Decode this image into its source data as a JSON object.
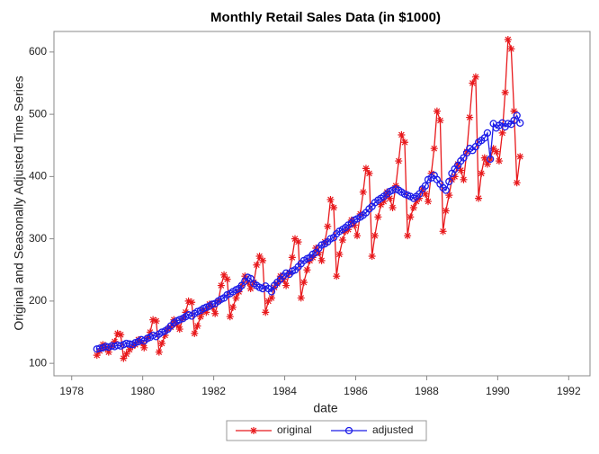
{
  "chart_data": {
    "type": "line",
    "title": "Monthly Retail Sales Data (in $1000)",
    "x_label": "date",
    "y_label": "Original and Seasonally Adjusted Time Series",
    "x": [
      1978.71,
      1978.79,
      1978.88,
      1978.96,
      1979.04,
      1979.13,
      1979.21,
      1979.29,
      1979.38,
      1979.46,
      1979.54,
      1979.63,
      1979.71,
      1979.79,
      1979.88,
      1979.96,
      1980.04,
      1980.13,
      1980.21,
      1980.29,
      1980.38,
      1980.46,
      1980.54,
      1980.63,
      1980.71,
      1980.79,
      1980.88,
      1980.96,
      1981.04,
      1981.13,
      1981.21,
      1981.29,
      1981.38,
      1981.46,
      1981.54,
      1981.63,
      1981.71,
      1981.79,
      1981.88,
      1981.96,
      1982.04,
      1982.13,
      1982.21,
      1982.29,
      1982.38,
      1982.46,
      1982.54,
      1982.63,
      1982.71,
      1982.79,
      1982.88,
      1982.96,
      1983.04,
      1983.13,
      1983.21,
      1983.29,
      1983.38,
      1983.46,
      1983.54,
      1983.63,
      1983.71,
      1983.79,
      1983.88,
      1983.96,
      1984.04,
      1984.13,
      1984.21,
      1984.29,
      1984.38,
      1984.46,
      1984.54,
      1984.63,
      1984.71,
      1984.79,
      1984.88,
      1984.96,
      1985.04,
      1985.13,
      1985.21,
      1985.29,
      1985.38,
      1985.46,
      1985.54,
      1985.63,
      1985.71,
      1985.79,
      1985.88,
      1985.96,
      1986.04,
      1986.13,
      1986.21,
      1986.29,
      1986.38,
      1986.46,
      1986.54,
      1986.63,
      1986.71,
      1986.79,
      1986.88,
      1986.96,
      1987.04,
      1987.13,
      1987.21,
      1987.29,
      1987.38,
      1987.46,
      1987.54,
      1987.63,
      1987.71,
      1987.79,
      1987.88,
      1987.96,
      1988.04,
      1988.13,
      1988.21,
      1988.29,
      1988.38,
      1988.46,
      1988.54,
      1988.63,
      1988.71,
      1988.79,
      1988.88,
      1988.96,
      1989.04,
      1989.13,
      1989.21,
      1989.29,
      1989.38,
      1989.46,
      1989.54,
      1989.63,
      1989.71,
      1989.79,
      1989.88,
      1989.96,
      1990.04,
      1990.13,
      1990.21,
      1990.29,
      1990.38,
      1990.46,
      1990.54,
      1990.63
    ],
    "series": [
      {
        "name": "original",
        "color": "#e8191c",
        "marker": "star",
        "values": [
          113,
          120,
          130,
          125,
          118,
          128,
          135,
          148,
          146,
          108,
          115,
          122,
          128,
          130,
          138,
          133,
          125,
          140,
          150,
          170,
          168,
          118,
          132,
          145,
          155,
          158,
          170,
          162,
          155,
          172,
          182,
          200,
          198,
          148,
          160,
          175,
          185,
          182,
          195,
          190,
          180,
          200,
          225,
          242,
          235,
          175,
          190,
          205,
          215,
          225,
          240,
          230,
          220,
          230,
          258,
          272,
          265,
          182,
          200,
          205,
          222,
          228,
          240,
          235,
          225,
          245,
          270,
          300,
          295,
          205,
          230,
          250,
          265,
          270,
          285,
          278,
          265,
          295,
          320,
          363,
          350,
          240,
          275,
          298,
          312,
          315,
          330,
          322,
          305,
          340,
          375,
          413,
          405,
          272,
          305,
          335,
          355,
          360,
          375,
          365,
          350,
          385,
          425,
          467,
          455,
          305,
          335,
          350,
          360,
          365,
          380,
          372,
          360,
          405,
          445,
          505,
          490,
          312,
          345,
          370,
          395,
          400,
          420,
          410,
          395,
          440,
          495,
          550,
          560,
          365,
          405,
          430,
          420,
          428,
          445,
          440,
          425,
          470,
          535,
          620,
          605,
          505,
          390,
          432
        ]
      },
      {
        "name": "adjusted",
        "color": "#1c1ce8",
        "marker": "circle",
        "values": [
          123,
          124,
          125,
          127,
          126,
          128,
          127,
          129,
          128,
          130,
          132,
          131,
          130,
          133,
          135,
          138,
          136,
          140,
          142,
          145,
          143,
          147,
          150,
          152,
          155,
          160,
          165,
          168,
          170,
          172,
          175,
          178,
          176,
          180,
          183,
          185,
          188,
          190,
          192,
          195,
          196,
          200,
          203,
          205,
          210,
          212,
          215,
          218,
          220,
          225,
          232,
          238,
          236,
          228,
          225,
          222,
          220,
          224,
          220,
          215,
          225,
          230,
          235,
          240,
          245,
          243,
          248,
          250,
          255,
          260,
          265,
          268,
          270,
          275,
          278,
          285,
          290,
          292,
          295,
          300,
          302,
          308,
          312,
          315,
          318,
          322,
          325,
          330,
          332,
          335,
          338,
          342,
          348,
          352,
          358,
          362,
          365,
          368,
          372,
          376,
          378,
          380,
          378,
          375,
          372,
          370,
          368,
          365,
          368,
          372,
          380,
          385,
          395,
          398,
          402,
          395,
          388,
          382,
          378,
          392,
          405,
          412,
          418,
          425,
          430,
          438,
          445,
          442,
          448,
          455,
          458,
          462,
          470,
          428,
          485,
          478,
          482,
          486,
          480,
          485,
          484,
          490,
          498,
          486
        ]
      }
    ],
    "xlim": [
      1977.5,
      1992.6
    ],
    "xticks": [
      1978,
      1980,
      1982,
      1984,
      1986,
      1988,
      1990,
      1992
    ],
    "ylim": [
      80,
      633
    ],
    "yticks": [
      100,
      200,
      300,
      400,
      500,
      600
    ],
    "grid": false,
    "legend": "bottom"
  }
}
